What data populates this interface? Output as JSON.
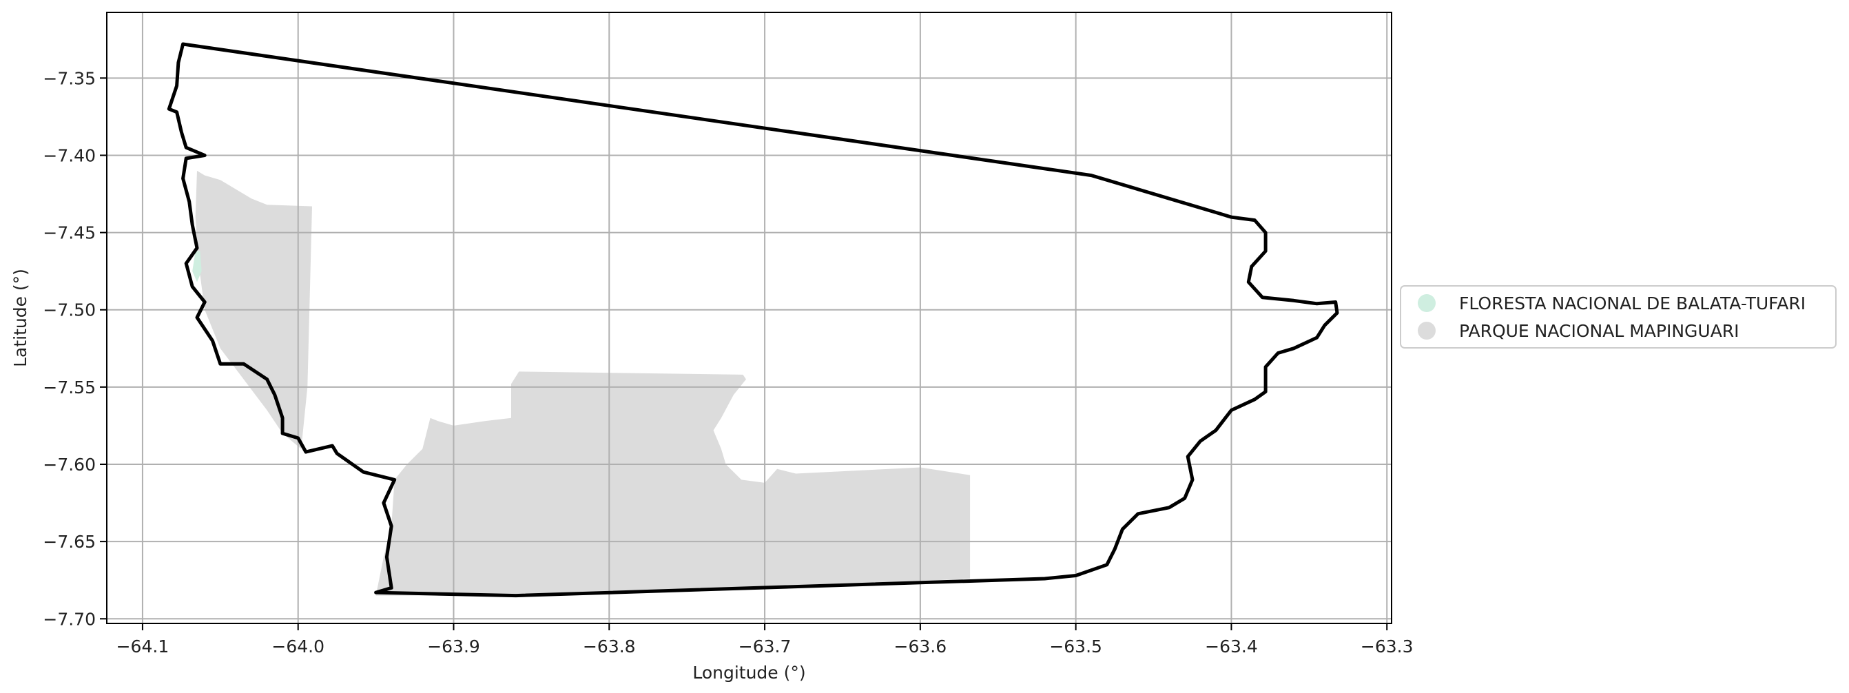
{
  "chart_data": {
    "type": "map",
    "xlabel": "Longitude (°)",
    "ylabel": "Latitude (°)",
    "xlim": [
      -64.123,
      -63.297
    ],
    "ylim": [
      -7.703,
      -7.3075
    ],
    "x_ticks": [
      -64.1,
      -64.0,
      -63.9,
      -63.8,
      -63.7,
      -63.6,
      -63.5,
      -63.4,
      -63.3
    ],
    "x_tick_labels": [
      "−64.1",
      "−64.0",
      "−63.9",
      "−63.8",
      "−63.7",
      "−63.6",
      "−63.5",
      "−63.4",
      "−63.3"
    ],
    "y_ticks": [
      -7.35,
      -7.4,
      -7.45,
      -7.5,
      -7.55,
      -7.6,
      -7.65,
      -7.7
    ],
    "y_tick_labels": [
      "−7.35",
      "−7.40",
      "−7.45",
      "−7.50",
      "−7.55",
      "−7.60",
      "−7.65",
      "−7.70"
    ],
    "grid": true,
    "legend_position": "center-right, outside",
    "legend": [
      {
        "name": "FLORESTA NACIONAL DE BALATA-TUFARI",
        "color": "#cfeee0"
      },
      {
        "name": "PARQUE NACIONAL MAPINGUARI",
        "color": "#dcdcdc"
      }
    ],
    "regions": [
      {
        "name": "PARQUE NACIONAL MAPINGUARI",
        "color": "#dcdcdc",
        "polygons": [
          [
            [
              -64.065,
              -7.41
            ],
            [
              -64.06,
              -7.413
            ],
            [
              -64.05,
              -7.416
            ],
            [
              -64.04,
              -7.422
            ],
            [
              -64.03,
              -7.428
            ],
            [
              -64.02,
              -7.432
            ],
            [
              -63.991,
              -7.433
            ],
            [
              -63.994,
              -7.55
            ],
            [
              -63.998,
              -7.59
            ],
            [
              -64.01,
              -7.58
            ],
            [
              -64.02,
              -7.565
            ],
            [
              -64.035,
              -7.545
            ],
            [
              -64.05,
              -7.525
            ],
            [
              -64.06,
              -7.5
            ],
            [
              -64.064,
              -7.47
            ],
            [
              -64.066,
              -7.44
            ]
          ],
          [
            [
              -63.95,
              -7.685
            ],
            [
              -63.945,
              -7.66
            ],
            [
              -63.94,
              -7.64
            ],
            [
              -63.938,
              -7.61
            ],
            [
              -63.93,
              -7.6
            ],
            [
              -63.92,
              -7.59
            ],
            [
              -63.915,
              -7.57
            ],
            [
              -63.91,
              -7.572
            ],
            [
              -63.9,
              -7.575
            ],
            [
              -63.88,
              -7.572
            ],
            [
              -63.863,
              -7.57
            ],
            [
              -63.863,
              -7.548
            ],
            [
              -63.858,
              -7.54
            ],
            [
              -63.714,
              -7.542
            ],
            [
              -63.712,
              -7.545
            ],
            [
              -63.72,
              -7.555
            ],
            [
              -63.728,
              -7.57
            ],
            [
              -63.733,
              -7.578
            ],
            [
              -63.728,
              -7.59
            ],
            [
              -63.725,
              -7.6
            ],
            [
              -63.715,
              -7.61
            ],
            [
              -63.7,
              -7.612
            ],
            [
              -63.692,
              -7.603
            ],
            [
              -63.68,
              -7.606
            ],
            [
              -63.6,
              -7.602
            ],
            [
              -63.568,
              -7.607
            ],
            [
              -63.568,
              -7.674
            ],
            [
              -63.7,
              -7.68
            ],
            [
              -63.86,
              -7.685
            ]
          ]
        ]
      },
      {
        "name": "FLORESTA NACIONAL DE BALATA-TUFARI",
        "color": "#cfeee0",
        "polygons": [
          [
            [
              -64.066,
              -7.462
            ],
            [
              -64.063,
              -7.462
            ],
            [
              -64.062,
              -7.475
            ],
            [
              -64.065,
              -7.482
            ],
            [
              -64.068,
              -7.475
            ]
          ]
        ]
      },
      {
        "name": "study-area-outline",
        "color": "#000000",
        "polygons": [
          [
            [
              -64.074,
              -7.328
            ],
            [
              -63.49,
              -7.413
            ],
            [
              -63.41,
              -7.437
            ],
            [
              -63.4,
              -7.44
            ],
            [
              -63.385,
              -7.442
            ],
            [
              -63.378,
              -7.45
            ],
            [
              -63.378,
              -7.462
            ],
            [
              -63.387,
              -7.472
            ],
            [
              -63.389,
              -7.482
            ],
            [
              -63.38,
              -7.492
            ],
            [
              -63.36,
              -7.494
            ],
            [
              -63.345,
              -7.496
            ],
            [
              -63.333,
              -7.495
            ],
            [
              -63.332,
              -7.502
            ],
            [
              -63.34,
              -7.51
            ],
            [
              -63.345,
              -7.518
            ],
            [
              -63.36,
              -7.525
            ],
            [
              -63.37,
              -7.528
            ],
            [
              -63.378,
              -7.537
            ],
            [
              -63.378,
              -7.553
            ],
            [
              -63.385,
              -7.558
            ],
            [
              -63.4,
              -7.565
            ],
            [
              -63.41,
              -7.578
            ],
            [
              -63.42,
              -7.585
            ],
            [
              -63.428,
              -7.595
            ],
            [
              -63.425,
              -7.61
            ],
            [
              -63.43,
              -7.622
            ],
            [
              -63.44,
              -7.628
            ],
            [
              -63.46,
              -7.632
            ],
            [
              -63.47,
              -7.642
            ],
            [
              -63.475,
              -7.655
            ],
            [
              -63.48,
              -7.665
            ],
            [
              -63.5,
              -7.672
            ],
            [
              -63.52,
              -7.674
            ],
            [
              -63.86,
              -7.685
            ],
            [
              -63.95,
              -7.683
            ],
            [
              -63.94,
              -7.68
            ],
            [
              -63.943,
              -7.66
            ],
            [
              -63.94,
              -7.64
            ],
            [
              -63.945,
              -7.625
            ],
            [
              -63.938,
              -7.61
            ],
            [
              -63.958,
              -7.605
            ],
            [
              -63.975,
              -7.593
            ],
            [
              -63.978,
              -7.588
            ],
            [
              -63.995,
              -7.592
            ],
            [
              -64.0,
              -7.583
            ],
            [
              -64.01,
              -7.58
            ],
            [
              -64.01,
              -7.57
            ],
            [
              -64.015,
              -7.555
            ],
            [
              -64.02,
              -7.545
            ],
            [
              -64.035,
              -7.535
            ],
            [
              -64.05,
              -7.535
            ],
            [
              -64.055,
              -7.52
            ],
            [
              -64.065,
              -7.505
            ],
            [
              -64.06,
              -7.495
            ],
            [
              -64.068,
              -7.485
            ],
            [
              -64.072,
              -7.47
            ],
            [
              -64.065,
              -7.46
            ],
            [
              -64.068,
              -7.445
            ],
            [
              -64.07,
              -7.43
            ],
            [
              -64.074,
              -7.415
            ],
            [
              -64.072,
              -7.402
            ],
            [
              -64.06,
              -7.4
            ],
            [
              -64.072,
              -7.395
            ],
            [
              -64.075,
              -7.385
            ],
            [
              -64.078,
              -7.372
            ],
            [
              -64.083,
              -7.37
            ],
            [
              -64.078,
              -7.355
            ],
            [
              -64.077,
              -7.34
            ]
          ]
        ]
      }
    ]
  }
}
